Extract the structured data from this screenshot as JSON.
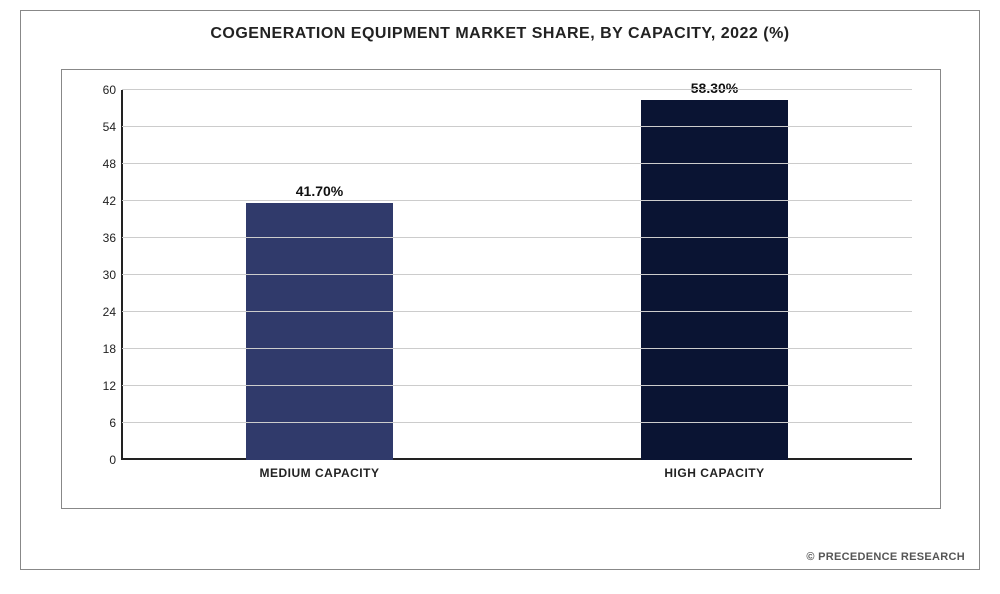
{
  "chart": {
    "type": "bar",
    "title": "COGENERATION EQUIPMENT MARKET SHARE, BY CAPACITY, 2022 (%)",
    "title_fontsize": 16,
    "title_color": "#222222",
    "categories": [
      "MEDIUM CAPACITY",
      "HIGH CAPACITY"
    ],
    "values": [
      41.7,
      58.3
    ],
    "value_labels": [
      "41.70%",
      "58.30%"
    ],
    "bar_colors": [
      "#303a6b",
      "#0a1433"
    ],
    "bar_width_pct": 62,
    "ylim": [
      0,
      60
    ],
    "ytick_step": 6,
    "yticks": [
      0,
      6,
      12,
      18,
      24,
      30,
      36,
      42,
      48,
      54,
      60
    ],
    "grid_color": "#cccccc",
    "axis_color": "#222222",
    "background_color": "#ffffff",
    "frame_border_color": "#888888",
    "label_fontsize": 12,
    "value_fontsize": 14,
    "attribution": "© PRECEDENCE RESEARCH"
  }
}
